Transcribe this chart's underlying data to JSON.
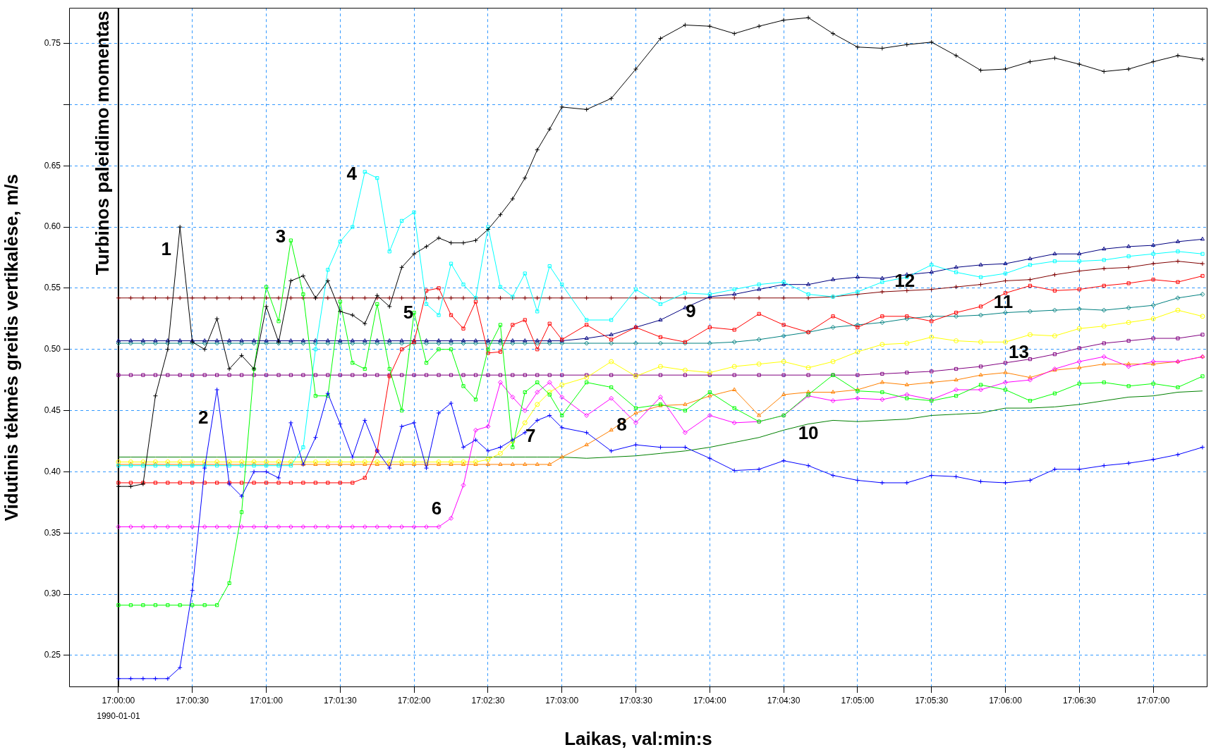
{
  "chart_data": {
    "type": "line",
    "xlabel": "Laikas, val:min:s",
    "ylabel": "Vidutinis tėkmės greitis vertikalėse, m/s",
    "x": [
      17,
      17.00139,
      17.00278,
      17.00417,
      17.00556,
      17.00694,
      17.00833,
      17.00972,
      17.01111,
      17.0125,
      17.01389,
      17.01528,
      17.01667,
      17.01806,
      17.01944,
      17.02083,
      17.02222,
      17.02361,
      17.025,
      17.02639,
      17.02778,
      17.02917,
      17.03056,
      17.03194,
      17.03333,
      17.03472,
      17.03611,
      17.0375,
      17.03889,
      17.04028,
      17.04167,
      17.04306,
      17.04444,
      17.04583,
      17.04722,
      17.04861,
      17.05,
      17.05278,
      17.05556,
      17.05833,
      17.06111,
      17.06389,
      17.06667,
      17.06944,
      17.07222,
      17.075,
      17.07778,
      17.08056,
      17.08333,
      17.08611,
      17.08889,
      17.09167,
      17.09444,
      17.09722,
      17.1,
      17.10278,
      17.10556,
      17.10833,
      17.11111,
      17.11389,
      17.11667,
      17.11944,
      17.12222
    ],
    "series": [
      {
        "name": "1",
        "color": "#000000",
        "marker": "cross",
        "values": [
          0.388,
          0.388,
          0.39,
          0.462,
          0.5,
          0.6,
          0.506,
          0.5,
          0.525,
          0.484,
          0.495,
          0.484,
          0.535,
          0.506,
          0.556,
          0.56,
          0.542,
          0.556,
          0.531,
          0.528,
          0.521,
          0.544,
          0.535,
          0.567,
          0.578,
          0.584,
          0.591,
          0.587,
          0.587,
          0.589,
          0.598,
          0.61,
          0.623,
          0.64,
          0.663,
          0.68,
          0.698,
          0.696,
          0.705,
          0.729,
          0.754,
          0.765,
          0.764,
          0.758,
          0.764,
          0.769,
          0.771,
          0.758,
          0.747,
          0.746,
          0.749,
          0.751,
          0.74,
          0.728,
          0.729,
          0.735,
          0.738,
          0.733,
          0.727,
          0.729,
          0.735,
          0.74,
          0.737
        ]
      },
      {
        "name": "2",
        "color": "#0000ff",
        "marker": "cross",
        "values": [
          0.231,
          0.231,
          0.231,
          0.231,
          0.231,
          0.24,
          0.303,
          0.403,
          0.467,
          0.39,
          0.38,
          0.4,
          0.4,
          0.395,
          0.44,
          0.406,
          0.428,
          0.464,
          0.439,
          0.412,
          0.442,
          0.417,
          0.403,
          0.437,
          0.44,
          0.403,
          0.448,
          0.456,
          0.42,
          0.426,
          0.417,
          0.42,
          0.426,
          0.432,
          0.442,
          0.446,
          0.436,
          0.432,
          0.417,
          0.422,
          0.42,
          0.42,
          0.411,
          0.401,
          0.402,
          0.409,
          0.405,
          0.397,
          0.393,
          0.391,
          0.391,
          0.397,
          0.396,
          0.392,
          0.391,
          0.393,
          0.402,
          0.402,
          0.405,
          0.407,
          0.41,
          0.414,
          0.42
        ]
      },
      {
        "name": "3",
        "color": "#00ff00",
        "marker": "square",
        "values": [
          0.291,
          0.291,
          0.291,
          0.291,
          0.291,
          0.291,
          0.291,
          0.291,
          0.291,
          0.309,
          0.367,
          0.484,
          0.551,
          0.523,
          0.589,
          0.545,
          0.462,
          0.462,
          0.539,
          0.489,
          0.484,
          0.537,
          0.484,
          0.45,
          0.53,
          0.489,
          0.5,
          0.5,
          0.47,
          0.459,
          0.5,
          0.52,
          0.42,
          0.465,
          0.473,
          0.463,
          0.446,
          0.473,
          0.469,
          0.452,
          0.455,
          0.45,
          0.465,
          0.452,
          0.441,
          0.446,
          0.463,
          0.479,
          0.466,
          0.465,
          0.46,
          0.458,
          0.462,
          0.471,
          0.467,
          0.458,
          0.464,
          0.472,
          0.473,
          0.47,
          0.472,
          0.469,
          0.478
        ]
      },
      {
        "name": "4",
        "color": "#00ffff",
        "marker": "square",
        "values": [
          0.405,
          0.405,
          0.405,
          0.405,
          0.405,
          0.405,
          0.405,
          0.405,
          0.405,
          0.405,
          0.405,
          0.405,
          0.405,
          0.405,
          0.405,
          0.42,
          0.5,
          0.565,
          0.588,
          0.6,
          0.645,
          0.64,
          0.58,
          0.605,
          0.612,
          0.537,
          0.528,
          0.57,
          0.553,
          0.542,
          0.6,
          0.551,
          0.543,
          0.562,
          0.531,
          0.568,
          0.553,
          0.524,
          0.524,
          0.549,
          0.537,
          0.546,
          0.545,
          0.549,
          0.553,
          0.555,
          0.545,
          0.543,
          0.547,
          0.555,
          0.559,
          0.569,
          0.563,
          0.559,
          0.562,
          0.569,
          0.572,
          0.572,
          0.573,
          0.576,
          0.578,
          0.58,
          0.578
        ]
      },
      {
        "name": "5",
        "color": "#ff0000",
        "marker": "square",
        "values": [
          0.391,
          0.391,
          0.391,
          0.391,
          0.391,
          0.391,
          0.391,
          0.391,
          0.391,
          0.391,
          0.391,
          0.391,
          0.391,
          0.391,
          0.391,
          0.391,
          0.391,
          0.391,
          0.391,
          0.391,
          0.395,
          0.417,
          0.478,
          0.5,
          0.506,
          0.548,
          0.55,
          0.528,
          0.517,
          0.539,
          0.497,
          0.498,
          0.52,
          0.524,
          0.5,
          0.521,
          0.508,
          0.52,
          0.508,
          0.518,
          0.51,
          0.506,
          0.518,
          0.516,
          0.529,
          0.52,
          0.514,
          0.527,
          0.518,
          0.527,
          0.527,
          0.523,
          0.53,
          0.535,
          0.546,
          0.552,
          0.548,
          0.549,
          0.552,
          0.554,
          0.557,
          0.555,
          0.56
        ]
      },
      {
        "name": "6",
        "color": "#ff00ff",
        "marker": "diamond",
        "values": [
          0.355,
          0.355,
          0.355,
          0.355,
          0.355,
          0.355,
          0.355,
          0.355,
          0.355,
          0.355,
          0.355,
          0.355,
          0.355,
          0.355,
          0.355,
          0.355,
          0.355,
          0.355,
          0.355,
          0.355,
          0.355,
          0.355,
          0.355,
          0.355,
          0.355,
          0.355,
          0.355,
          0.362,
          0.389,
          0.434,
          0.437,
          0.473,
          0.461,
          0.45,
          0.465,
          0.473,
          0.461,
          0.446,
          0.46,
          0.44,
          0.461,
          0.432,
          0.446,
          0.44,
          0.441,
          0.446,
          0.462,
          0.458,
          0.46,
          0.459,
          0.463,
          0.459,
          0.467,
          0.467,
          0.473,
          0.475,
          0.484,
          0.49,
          0.494,
          0.486,
          0.49,
          0.49,
          0.494
        ]
      },
      {
        "name": "7",
        "color": "#ffff00",
        "marker": "circle",
        "values": [
          0.408,
          0.408,
          0.408,
          0.408,
          0.408,
          0.408,
          0.408,
          0.408,
          0.408,
          0.408,
          0.408,
          0.408,
          0.408,
          0.408,
          0.408,
          0.408,
          0.408,
          0.408,
          0.408,
          0.408,
          0.408,
          0.408,
          0.408,
          0.408,
          0.408,
          0.408,
          0.408,
          0.408,
          0.408,
          0.408,
          0.41,
          0.415,
          0.425,
          0.44,
          0.455,
          0.465,
          0.471,
          0.477,
          0.49,
          0.478,
          0.486,
          0.483,
          0.481,
          0.486,
          0.488,
          0.49,
          0.485,
          0.49,
          0.498,
          0.504,
          0.505,
          0.51,
          0.507,
          0.506,
          0.506,
          0.512,
          0.511,
          0.517,
          0.519,
          0.522,
          0.525,
          0.532,
          0.527
        ]
      },
      {
        "name": "8",
        "color": "#ff8000",
        "marker": "triangle",
        "values": [
          0.406,
          0.406,
          0.406,
          0.406,
          0.406,
          0.406,
          0.406,
          0.406,
          0.406,
          0.406,
          0.406,
          0.406,
          0.406,
          0.406,
          0.406,
          0.406,
          0.406,
          0.406,
          0.406,
          0.406,
          0.406,
          0.406,
          0.406,
          0.406,
          0.406,
          0.406,
          0.406,
          0.406,
          0.406,
          0.406,
          0.406,
          0.406,
          0.406,
          0.406,
          0.406,
          0.406,
          0.412,
          0.422,
          0.434,
          0.448,
          0.454,
          0.455,
          0.462,
          0.467,
          0.446,
          0.463,
          0.465,
          0.465,
          0.467,
          0.473,
          0.471,
          0.473,
          0.475,
          0.479,
          0.481,
          0.477,
          0.483,
          0.485,
          0.488,
          0.488,
          0.488,
          0.49,
          0.494
        ]
      },
      {
        "name": "9",
        "color": "#000080",
        "marker": "triangle",
        "values": [
          0.507,
          0.507,
          0.507,
          0.507,
          0.507,
          0.507,
          0.507,
          0.507,
          0.507,
          0.507,
          0.507,
          0.507,
          0.507,
          0.507,
          0.507,
          0.507,
          0.507,
          0.507,
          0.507,
          0.507,
          0.507,
          0.507,
          0.507,
          0.507,
          0.507,
          0.507,
          0.507,
          0.507,
          0.507,
          0.507,
          0.507,
          0.507,
          0.507,
          0.507,
          0.507,
          0.507,
          0.507,
          0.509,
          0.512,
          0.518,
          0.524,
          0.534,
          0.543,
          0.545,
          0.549,
          0.553,
          0.553,
          0.557,
          0.559,
          0.558,
          0.561,
          0.563,
          0.567,
          0.569,
          0.57,
          0.574,
          0.578,
          0.578,
          0.582,
          0.584,
          0.585,
          0.588,
          0.59
        ]
      },
      {
        "name": "10",
        "color": "#008000",
        "marker": "none",
        "values": [
          0.412,
          0.412,
          0.412,
          0.412,
          0.412,
          0.412,
          0.412,
          0.412,
          0.412,
          0.412,
          0.412,
          0.412,
          0.412,
          0.412,
          0.412,
          0.412,
          0.412,
          0.412,
          0.412,
          0.412,
          0.412,
          0.412,
          0.412,
          0.412,
          0.412,
          0.412,
          0.412,
          0.412,
          0.412,
          0.412,
          0.412,
          0.412,
          0.412,
          0.412,
          0.412,
          0.412,
          0.412,
          0.411,
          0.412,
          0.413,
          0.415,
          0.417,
          0.42,
          0.424,
          0.428,
          0.434,
          0.439,
          0.442,
          0.441,
          0.442,
          0.443,
          0.446,
          0.447,
          0.448,
          0.452,
          0.452,
          0.453,
          0.455,
          0.458,
          0.461,
          0.462,
          0.465,
          0.466
        ]
      },
      {
        "name": "11",
        "color": "#008080",
        "marker": "diamond",
        "values": [
          0.505,
          0.505,
          0.505,
          0.505,
          0.505,
          0.505,
          0.505,
          0.505,
          0.505,
          0.505,
          0.505,
          0.505,
          0.505,
          0.505,
          0.505,
          0.505,
          0.505,
          0.505,
          0.505,
          0.505,
          0.505,
          0.505,
          0.505,
          0.505,
          0.505,
          0.505,
          0.505,
          0.505,
          0.505,
          0.505,
          0.505,
          0.505,
          0.505,
          0.505,
          0.505,
          0.505,
          0.505,
          0.505,
          0.505,
          0.505,
          0.505,
          0.505,
          0.505,
          0.506,
          0.508,
          0.511,
          0.514,
          0.518,
          0.52,
          0.522,
          0.525,
          0.527,
          0.527,
          0.528,
          0.53,
          0.531,
          0.532,
          0.533,
          0.532,
          0.534,
          0.536,
          0.542,
          0.545
        ]
      },
      {
        "name": "12",
        "color": "#800000",
        "marker": "cross",
        "values": [
          0.542,
          0.542,
          0.542,
          0.542,
          0.542,
          0.542,
          0.542,
          0.542,
          0.542,
          0.542,
          0.542,
          0.542,
          0.542,
          0.542,
          0.542,
          0.542,
          0.542,
          0.542,
          0.542,
          0.542,
          0.542,
          0.542,
          0.542,
          0.542,
          0.542,
          0.542,
          0.542,
          0.542,
          0.542,
          0.542,
          0.542,
          0.542,
          0.542,
          0.542,
          0.542,
          0.542,
          0.542,
          0.542,
          0.542,
          0.542,
          0.542,
          0.542,
          0.542,
          0.542,
          0.542,
          0.542,
          0.542,
          0.543,
          0.545,
          0.547,
          0.548,
          0.549,
          0.551,
          0.553,
          0.556,
          0.557,
          0.561,
          0.564,
          0.566,
          0.567,
          0.57,
          0.572,
          0.57
        ]
      },
      {
        "name": "13",
        "color": "#800080",
        "marker": "square",
        "values": [
          0.479,
          0.479,
          0.479,
          0.479,
          0.479,
          0.479,
          0.479,
          0.479,
          0.479,
          0.479,
          0.479,
          0.479,
          0.479,
          0.479,
          0.479,
          0.479,
          0.479,
          0.479,
          0.479,
          0.479,
          0.479,
          0.479,
          0.479,
          0.479,
          0.479,
          0.479,
          0.479,
          0.479,
          0.479,
          0.479,
          0.479,
          0.479,
          0.479,
          0.479,
          0.479,
          0.479,
          0.479,
          0.479,
          0.479,
          0.479,
          0.479,
          0.479,
          0.479,
          0.479,
          0.479,
          0.479,
          0.479,
          0.479,
          0.479,
          0.48,
          0.481,
          0.482,
          0.484,
          0.486,
          0.489,
          0.492,
          0.496,
          0.501,
          0.505,
          0.507,
          0.509,
          0.509,
          0.512
        ]
      }
    ],
    "xlim": [
      16.99444,
      17.12278
    ],
    "xticks": [
      {
        "value": 17,
        "label": "17:00:00"
      },
      {
        "value": 17.00833,
        "label": "17:00:30"
      },
      {
        "value": 17.01667,
        "label": "17:01:00"
      },
      {
        "value": 17.025,
        "label": "17:01:30"
      },
      {
        "value": 17.03333,
        "label": "17:02:00"
      },
      {
        "value": 17.04167,
        "label": "17:02:30"
      },
      {
        "value": 17.05,
        "label": "17:03:00"
      },
      {
        "value": 17.05833,
        "label": "17:03:30"
      },
      {
        "value": 17.06667,
        "label": "17:04:00"
      },
      {
        "value": 17.075,
        "label": "17:04:30"
      },
      {
        "value": 17.08333,
        "label": "17:05:00"
      },
      {
        "value": 17.09167,
        "label": "17:05:30"
      },
      {
        "value": 17.1,
        "label": "17:06:00"
      },
      {
        "value": 17.10833,
        "label": "17:06:30"
      },
      {
        "value": 17.11667,
        "label": "17:07:00"
      }
    ],
    "ylim": [
      0.224,
      0.779
    ],
    "yticks": [
      0.25,
      {
        "value": 0.3,
        "label": "0.30"
      },
      0.35,
      {
        "value": 0.4,
        "label": "0.40"
      },
      0.45,
      {
        "value": 0.5,
        "label": "0.50"
      },
      0.55,
      {
        "value": 0.6,
        "label": "0.60"
      },
      0.65,
      {
        "value": 0.7,
        "label": null
      },
      0.75
    ],
    "grid": true,
    "ref_lines": [
      {
        "axis": "x",
        "value": 17,
        "label": "Turbinos paleidimo momentas",
        "color": "#000000"
      }
    ],
    "annotations": [
      "1990-01-01"
    ]
  }
}
